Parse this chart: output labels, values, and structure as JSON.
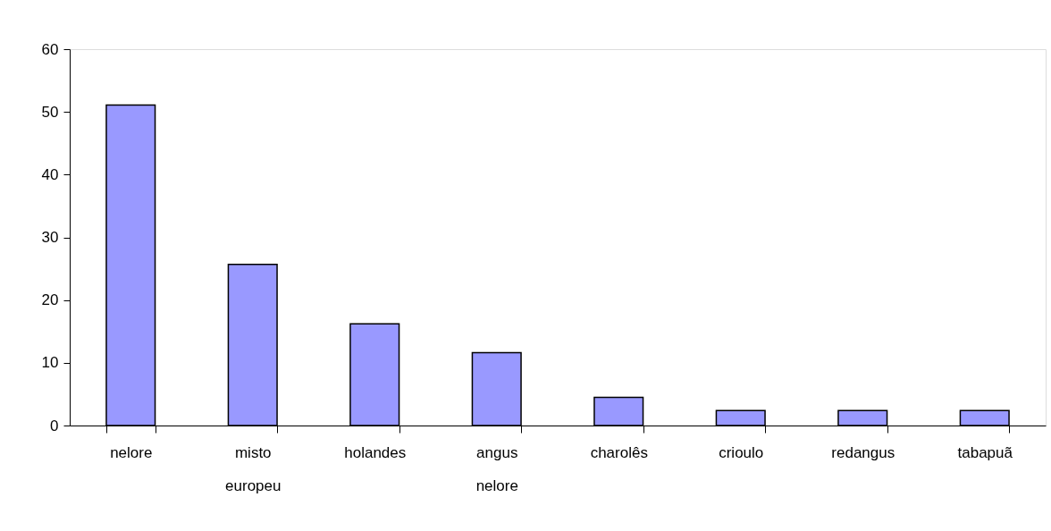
{
  "chart_data": {
    "type": "bar",
    "categories": [
      "nelore",
      "misto europeu",
      "holandes",
      "angus nelore",
      "charolês",
      "crioulo",
      "redangus",
      "tabapuã"
    ],
    "values": [
      51.1,
      25.7,
      16.2,
      11.6,
      4.5,
      2.4,
      2.4,
      2.4
    ],
    "color": "#9999ff",
    "ylim": [
      0,
      60
    ],
    "yticks": [
      0,
      10,
      20,
      30,
      40,
      50,
      60
    ]
  }
}
